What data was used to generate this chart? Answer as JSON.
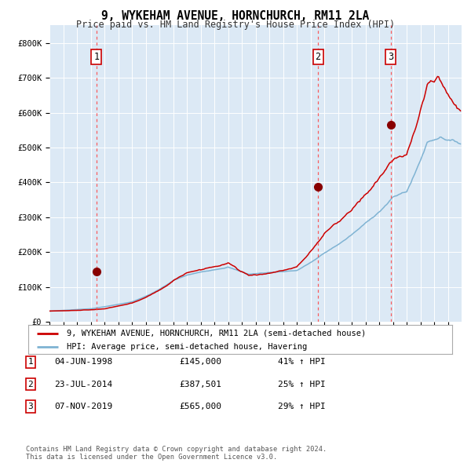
{
  "title": "9, WYKEHAM AVENUE, HORNCHURCH, RM11 2LA",
  "subtitle": "Price paid vs. HM Land Registry's House Price Index (HPI)",
  "bg_color": "#dce9f5",
  "plot_bg_color": "#dce9f5",
  "fig_bg_color": "#ffffff",
  "red_line_color": "#cc0000",
  "blue_line_color": "#7fb3d3",
  "marker_color": "#880000",
  "dashed_color": "#ff4444",
  "ylim": [
    0,
    850000
  ],
  "yticks": [
    0,
    100000,
    200000,
    300000,
    400000,
    500000,
    600000,
    700000,
    800000
  ],
  "ytick_labels": [
    "£0",
    "£100K",
    "£200K",
    "£300K",
    "£400K",
    "£500K",
    "£600K",
    "£700K",
    "£800K"
  ],
  "xstart_year": 1995,
  "xend_year": 2024,
  "sale_year_floats": [
    1998.42,
    2014.55,
    2019.84
  ],
  "sale_prices": [
    145000,
    387501,
    565000
  ],
  "sale_labels": [
    "1",
    "2",
    "3"
  ],
  "sale_info": [
    {
      "num": "1",
      "date": "04-JUN-1998",
      "price": "£145,000",
      "pct": "41% ↑ HPI"
    },
    {
      "num": "2",
      "date": "23-JUL-2014",
      "price": "£387,501",
      "pct": "25% ↑ HPI"
    },
    {
      "num": "3",
      "date": "07-NOV-2019",
      "price": "£565,000",
      "pct": "29% ↑ HPI"
    }
  ],
  "legend_red_label": "9, WYKEHAM AVENUE, HORNCHURCH, RM11 2LA (semi-detached house)",
  "legend_blue_label": "HPI: Average price, semi-detached house, Havering",
  "footer": "Contains HM Land Registry data © Crown copyright and database right 2024.\nThis data is licensed under the Open Government Licence v3.0."
}
